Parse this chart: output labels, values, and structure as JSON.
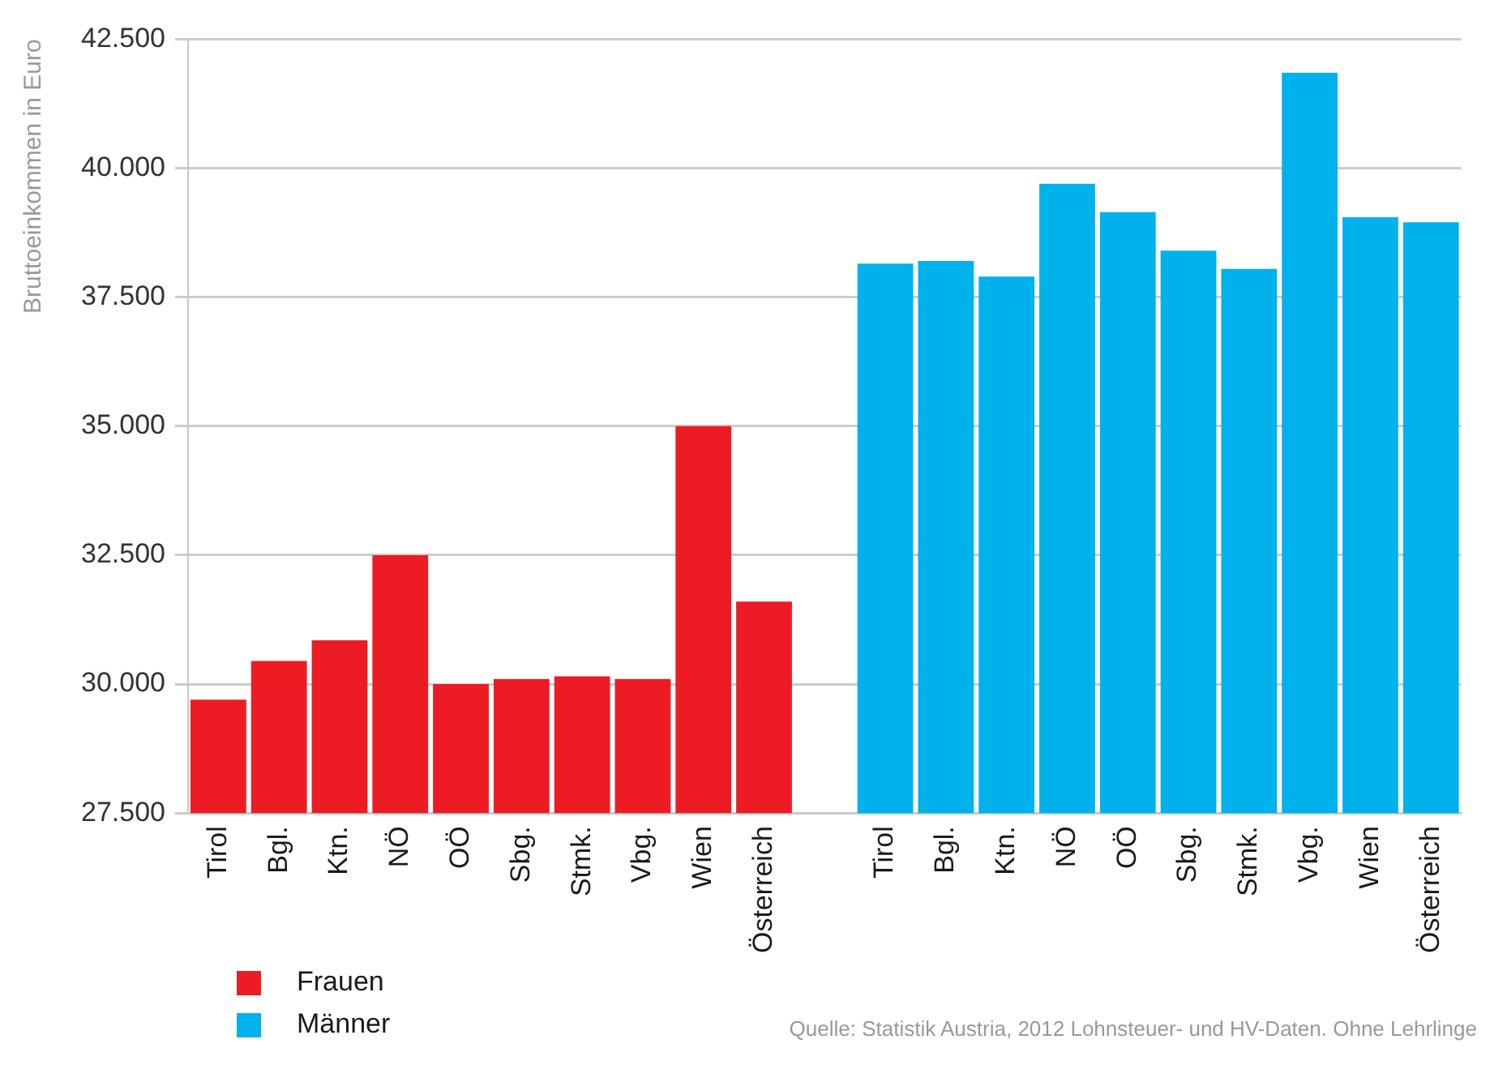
{
  "chart_data": {
    "type": "bar",
    "ylabel": "Bruttoeinkommen in Euro",
    "categories": [
      "Tirol",
      "Bgl.",
      "Ktn.",
      "NÖ",
      "OÖ",
      "Sbg.",
      "Stmk.",
      "Vbg.",
      "Wien",
      "Österreich",
      null,
      "Tirol",
      "Bgl.",
      "Ktn.",
      "NÖ",
      "OÖ",
      "Sbg.",
      "Stmk.",
      "Vbg.",
      "Wien",
      "Österreich"
    ],
    "series": [
      {
        "name": "Frauen",
        "color": "#ed1c24",
        "values": [
          29700,
          30450,
          30850,
          32500,
          30000,
          30100,
          30150,
          30100,
          35000,
          31600,
          null,
          null,
          null,
          null,
          null,
          null,
          null,
          null,
          null,
          null,
          null
        ]
      },
      {
        "name": "Männer",
        "color": "#00b2ec",
        "values": [
          null,
          null,
          null,
          null,
          null,
          null,
          null,
          null,
          null,
          null,
          null,
          38150,
          38200,
          37900,
          39700,
          39150,
          38400,
          38050,
          41850,
          39050,
          38950
        ]
      }
    ],
    "ylim": [
      27500,
      42500
    ],
    "yticks": [
      {
        "value": 27500,
        "label": "27.500"
      },
      {
        "value": 30000,
        "label": "30.000"
      },
      {
        "value": 32500,
        "label": "32.500"
      },
      {
        "value": 35000,
        "label": "35.000"
      },
      {
        "value": 37500,
        "label": "37.500"
      },
      {
        "value": 40000,
        "label": "40.000"
      },
      {
        "value": 42500,
        "label": "42.500"
      }
    ],
    "grid": "y",
    "legend": "bottom left",
    "annotations": [
      "Quelle: Statistik Austria, 2012 Lohnsteuer- und HV-Daten. Ohne Lehrlinge"
    ]
  }
}
